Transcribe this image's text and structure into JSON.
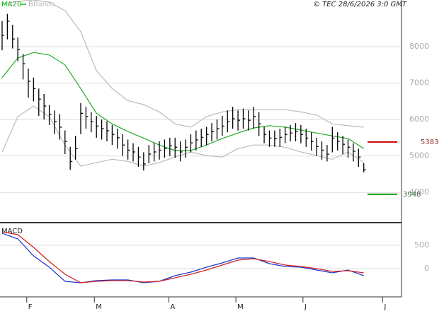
{
  "stamp": "© TEC 28/6/2026 3:0 GMT",
  "chart_data": [
    {
      "type": "ohlc",
      "x": [
        0,
        1,
        2,
        3,
        4,
        5,
        6,
        7,
        8,
        9,
        10,
        11,
        12,
        13,
        14,
        15,
        16,
        17,
        18,
        19,
        20,
        21,
        22,
        23,
        24,
        25,
        26,
        27,
        28,
        29,
        30,
        31,
        32,
        33,
        34,
        35,
        36,
        37,
        38,
        39,
        40,
        41,
        42,
        43,
        44,
        45,
        46,
        47,
        48,
        49,
        50,
        51,
        52,
        53,
        54,
        55,
        56,
        57,
        58,
        59,
        60,
        61,
        62,
        63,
        64,
        65,
        66,
        67,
        68,
        69
      ],
      "high": [
        8700,
        8900,
        8600,
        8250,
        7800,
        7400,
        7150,
        6850,
        6700,
        6400,
        6250,
        6150,
        5700,
        5250,
        5550,
        6450,
        6350,
        6200,
        6100,
        6000,
        5950,
        5850,
        5750,
        5600,
        5450,
        5350,
        5250,
        5100,
        5300,
        5350,
        5400,
        5450,
        5500,
        5500,
        5400,
        5450,
        5600,
        5700,
        5750,
        5800,
        5900,
        6000,
        6100,
        6250,
        6350,
        6250,
        6300,
        6250,
        6350,
        6200,
        5800,
        5700,
        5700,
        5750,
        5800,
        5850,
        5900,
        5850,
        5750,
        5650,
        5500,
        5400,
        5300,
        5800,
        5650,
        5550,
        5450,
        5350,
        5200,
        4800
      ],
      "low": [
        7900,
        8200,
        7950,
        7600,
        7100,
        6600,
        6500,
        6100,
        6000,
        5850,
        5600,
        5450,
        5050,
        4620,
        4900,
        5600,
        5750,
        5650,
        5500,
        5450,
        5400,
        5300,
        5200,
        5000,
        4900,
        4850,
        4700,
        4600,
        4800,
        4850,
        4900,
        4950,
        5000,
        4950,
        4850,
        4950,
        5100,
        5150,
        5250,
        5300,
        5400,
        5450,
        5550,
        5650,
        5750,
        5700,
        5750,
        5700,
        5750,
        5550,
        5350,
        5250,
        5250,
        5250,
        5350,
        5400,
        5400,
        5350,
        5250,
        5150,
        5000,
        4900,
        4850,
        5100,
        5150,
        5050,
        4950,
        4850,
        4700,
        4550
      ],
      "close": [
        8310,
        8700,
        8210,
        7920,
        7530,
        7050,
        6850,
        6560,
        6370,
        6140,
        5940,
        5790,
        5400,
        4850,
        5200,
        6170,
        6080,
        5940,
        5820,
        5750,
        5690,
        5590,
        5500,
        5300,
        5160,
        5110,
        4970,
        4780,
        5050,
        5110,
        5160,
        5200,
        5280,
        5240,
        5110,
        5240,
        5360,
        5440,
        5510,
        5590,
        5670,
        5750,
        5820,
        5940,
        6020,
        5980,
        6020,
        5980,
        6080,
        5880,
        5590,
        5490,
        5480,
        5510,
        5590,
        5630,
        5670,
        5590,
        5490,
        5400,
        5260,
        5160,
        5050,
        5490,
        5400,
        5320,
        5240,
        5130,
        4970,
        4620
      ],
      "color": "#000000",
      "series": [
        {
          "name": "MA20",
          "color": "#22aa22",
          "x": [
            0,
            3,
            6,
            9,
            12,
            15,
            18,
            21,
            24,
            27,
            30,
            33,
            36,
            39,
            42,
            45,
            48,
            51,
            54,
            57,
            60,
            63,
            66,
            69
          ],
          "values": [
            7150,
            7690,
            7840,
            7770,
            7500,
            6850,
            6170,
            5880,
            5670,
            5490,
            5300,
            5150,
            5150,
            5300,
            5480,
            5630,
            5770,
            5830,
            5790,
            5710,
            5630,
            5550,
            5480,
            5200
          ]
        }
      ],
      "bands": {
        "name": "BBands",
        "color": "#bbbbbb",
        "x": [
          0,
          3,
          6,
          9,
          12,
          15,
          18,
          21,
          24,
          27,
          30,
          33,
          36,
          39,
          42,
          45,
          48,
          51,
          54,
          57,
          60,
          63,
          66,
          69
        ],
        "upper": [
          9180,
          9240,
          9280,
          9220,
          8990,
          8410,
          7340,
          6850,
          6520,
          6410,
          6210,
          5880,
          5790,
          6080,
          6210,
          6270,
          6270,
          6270,
          6270,
          6210,
          6120,
          5880,
          5830,
          5790
        ],
        "lower": [
          5110,
          6080,
          6370,
          6080,
          5300,
          4720,
          4820,
          4910,
          4850,
          4720,
          4820,
          4970,
          5110,
          5010,
          4970,
          5200,
          5300,
          5300,
          5240,
          5110,
          5010,
          4910,
          5110,
          4820
        ]
      },
      "levels": [
        {
          "value": 5383,
          "color": "#cc0000"
        },
        {
          "value": 3948,
          "color": "#119911"
        }
      ],
      "xlim": [
        -0.4,
        76.2
      ],
      "ylim": [
        3170,
        9280
      ],
      "yticks": [
        4000,
        5000,
        6000,
        7000,
        8000
      ],
      "grid": true
    },
    {
      "type": "macd",
      "title": "MACD",
      "x": [
        0,
        3,
        6,
        9,
        12,
        15,
        18,
        21,
        24,
        27,
        30,
        33,
        36,
        39,
        42,
        45,
        48,
        51,
        54,
        57,
        60,
        63,
        66,
        69
      ],
      "series": [
        {
          "color": "#2233cc",
          "values": [
            758,
            636,
            273,
            30,
            -273,
            -303,
            -258,
            -242,
            -242,
            -303,
            -273,
            -152,
            -76,
            30,
            121,
            227,
            227,
            106,
            45,
            30,
            -30,
            -91,
            -30,
            -152
          ]
        },
        {
          "color": "#cc2222",
          "values": [
            788,
            727,
            455,
            152,
            -121,
            -303,
            -273,
            -258,
            -258,
            -288,
            -273,
            -197,
            -121,
            -30,
            76,
            182,
            212,
            152,
            76,
            45,
            0,
            -61,
            -45,
            -91
          ]
        }
      ],
      "xlim": [
        -0.4,
        76.2
      ],
      "ylim": [
        -606,
        939
      ],
      "yticks": [
        0,
        500
      ],
      "xticks": [
        {
          "value": 4.7,
          "label": "F"
        },
        {
          "value": 17.6,
          "label": "M"
        },
        {
          "value": 31.8,
          "label": "A"
        },
        {
          "value": 44.6,
          "label": "M"
        },
        {
          "value": 57.4,
          "label": "J"
        },
        {
          "value": 72.6,
          "label": "J"
        }
      ],
      "grid": true
    }
  ]
}
